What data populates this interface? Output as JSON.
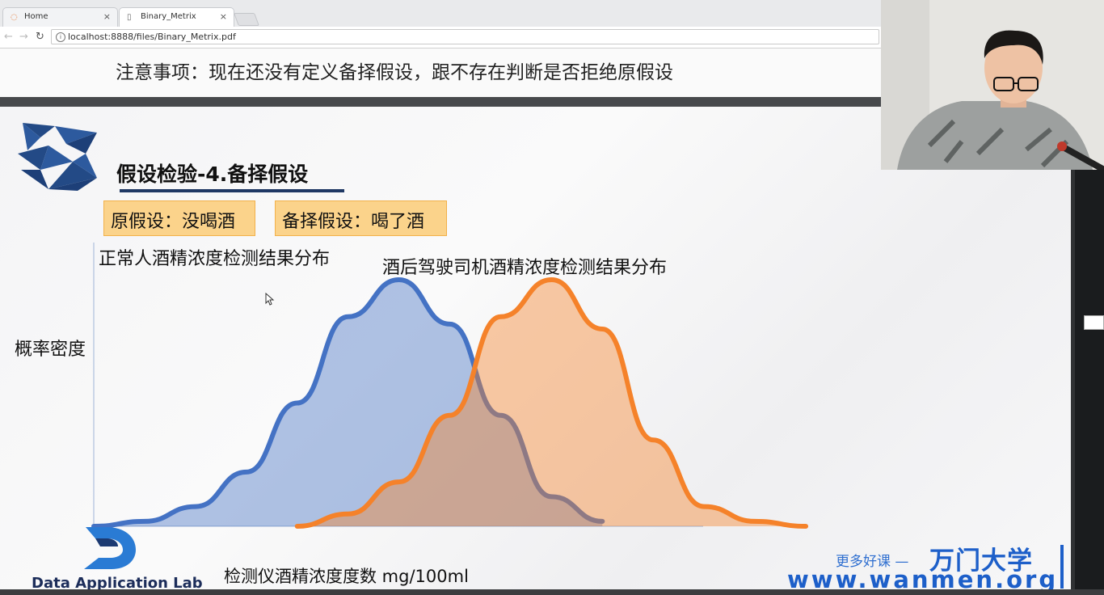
{
  "browser": {
    "tabs": [
      {
        "label": "Home",
        "icon": "jupyter-icon",
        "active": false
      },
      {
        "label": "Binary_Metrix",
        "icon": "document-icon",
        "active": true
      }
    ],
    "url": "localhost:8888/files/Binary_Metrix.pdf",
    "close_glyph": "×"
  },
  "pdf": {
    "notice": "注意事项：现在还没有定义备择假设，跟不存在判断是否拒绝原假设"
  },
  "slide": {
    "title": "假设检验-4.备择假设",
    "tag_null": "原假设：没喝酒",
    "tag_alt": "备择假设：喝了酒",
    "label_normal": "正常人酒精浓度检测结果分布",
    "label_drunk": "酒后驾驶司机酒精浓度检测结果分布",
    "ylabel": "概率密度",
    "xlabel": "检测仪酒精浓度度数 mg/100ml",
    "lab_name": "Data Application Lab",
    "brand_slogan": "更多好课 —",
    "brand_name": "万门大学",
    "brand_url": "www.wanmen.org",
    "colors": {
      "blue_curve": "#4472c4",
      "orange_curve": "#f5822a",
      "title_bar": "#1f3864"
    }
  },
  "chart_data": {
    "type": "area",
    "series": [
      {
        "x": [
          0,
          10,
          20,
          30,
          40,
          50,
          60,
          70,
          80,
          90,
          100
        ],
        "y": [
          0.0,
          0.02,
          0.08,
          0.22,
          0.5,
          0.85,
          1.0,
          0.82,
          0.45,
          0.12,
          0.02
        ]
      },
      {
        "x": [
          40,
          50,
          60,
          70,
          80,
          90,
          100,
          110,
          120,
          130,
          140
        ],
        "y": [
          0.0,
          0.05,
          0.18,
          0.45,
          0.85,
          1.0,
          0.8,
          0.35,
          0.08,
          0.02,
          0.0
        ]
      }
    ],
    "xlabel": "检测仪酒精浓度度数 mg/100ml",
    "ylabel": "概率密度"
  }
}
